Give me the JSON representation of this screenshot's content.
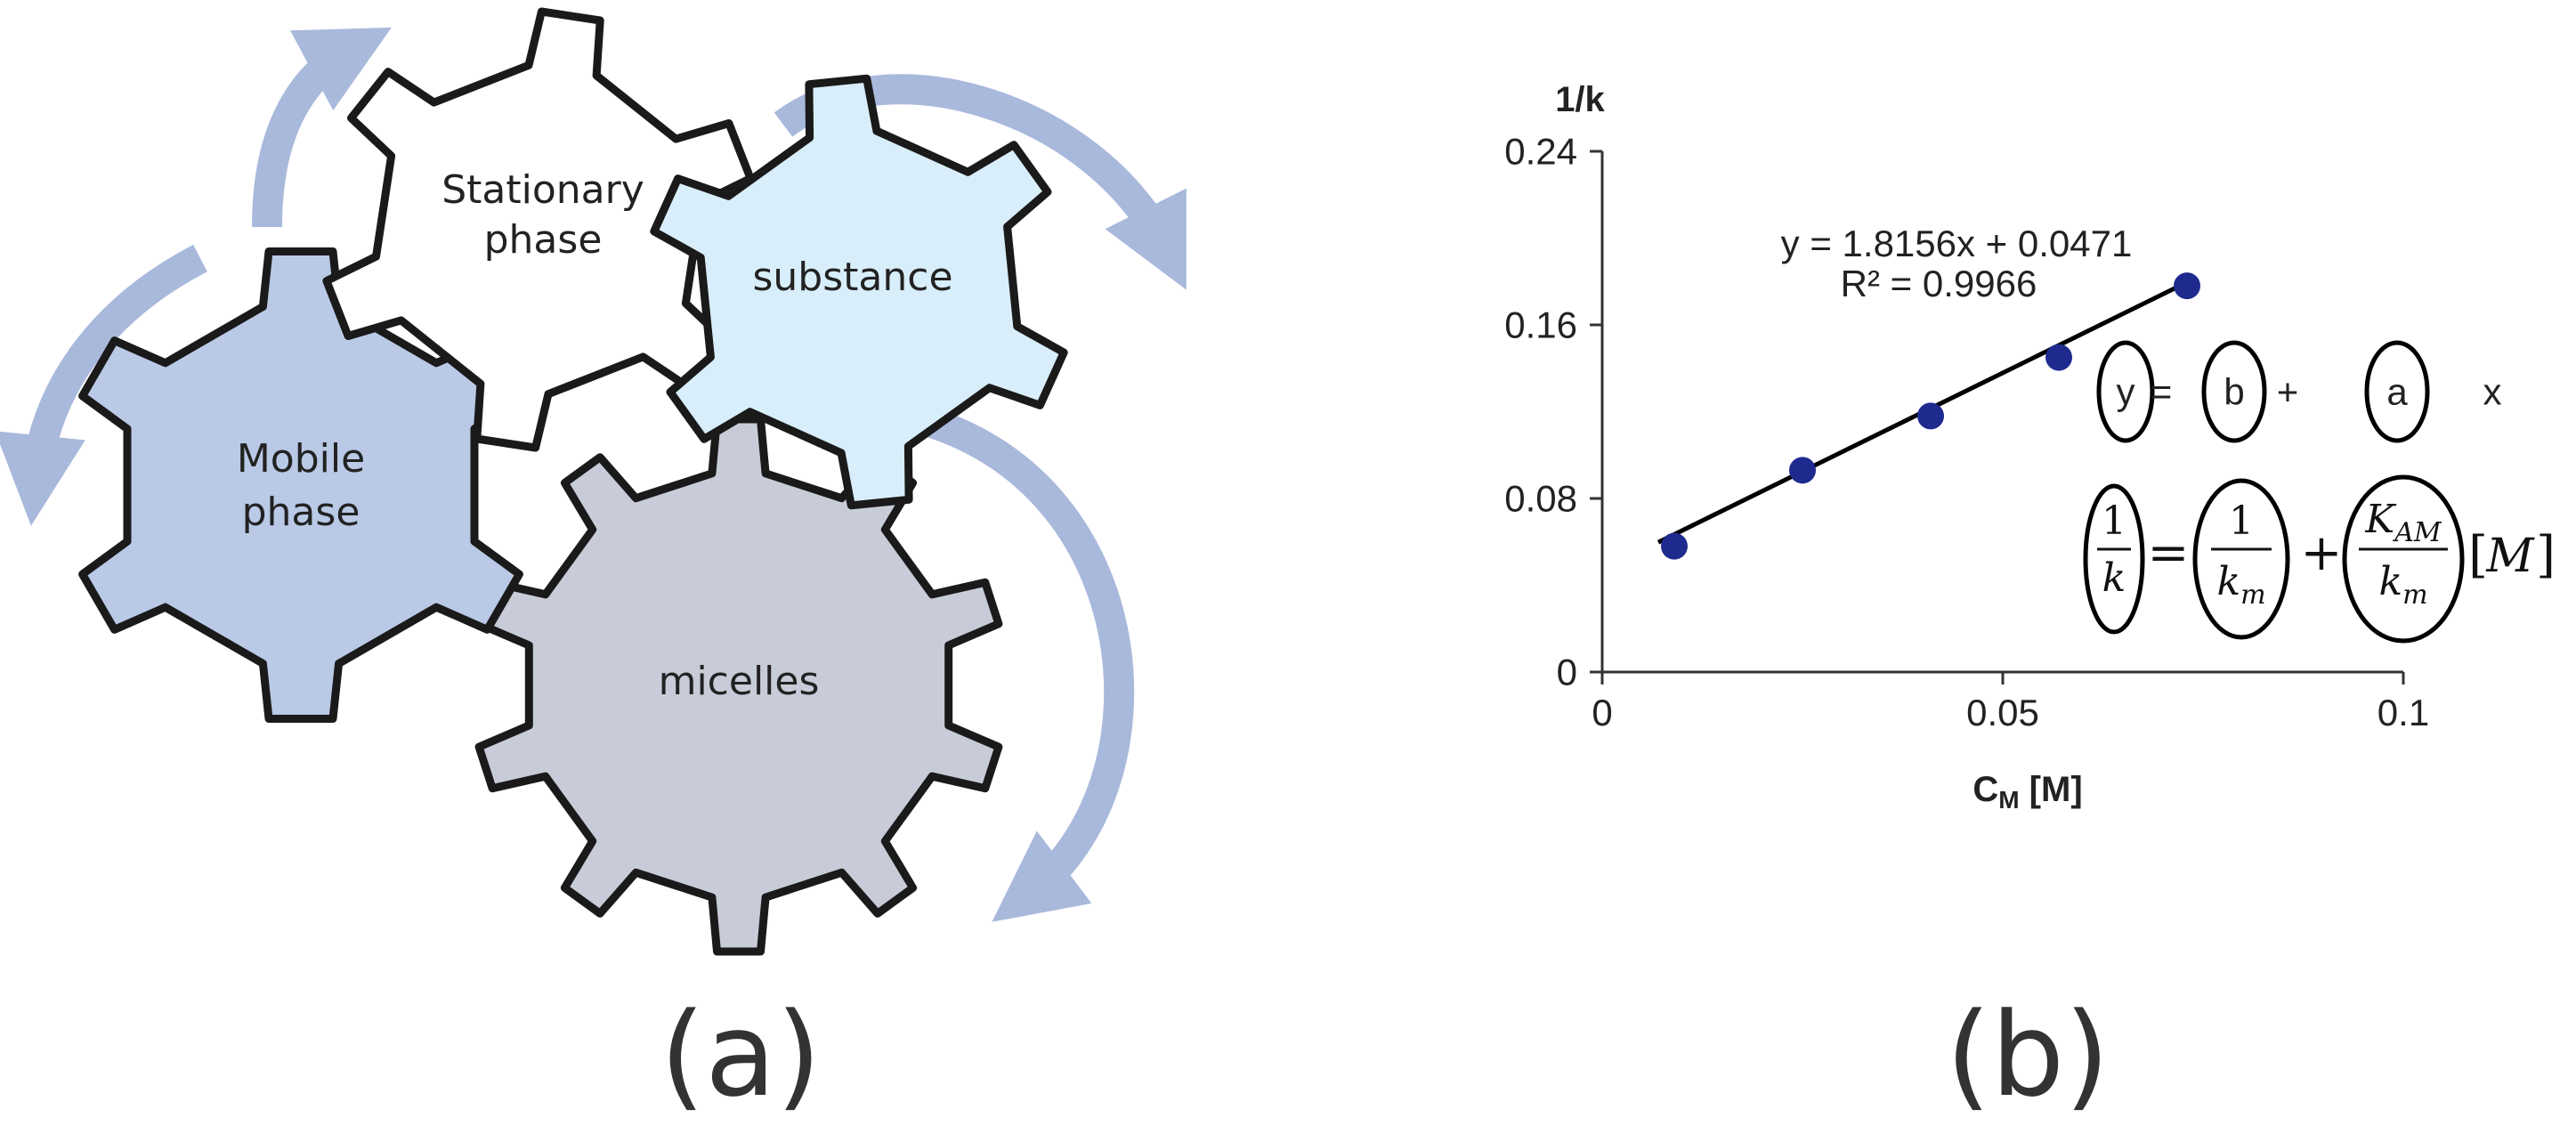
{
  "panel_a": {
    "label": "(a)",
    "gears": {
      "stationary": {
        "line1": "Stationary",
        "line2": "phase",
        "fill": "#ffffff"
      },
      "substance": {
        "text": "substance",
        "fill": "#d8eefa"
      },
      "mobile": {
        "line1": "Mobile",
        "line2": "phase",
        "fill": "#b9c9e6"
      },
      "micelles": {
        "text": "micelles",
        "fill": "#c8ccd8"
      }
    },
    "arrow_color": "#a9b9dc",
    "gear_stroke": "#1a1a1a"
  },
  "panel_b": {
    "label": "(b)",
    "regression": {
      "equation": "y = 1.8156x + 0.0471",
      "r2": "R² = 0.9966"
    },
    "linear_form": {
      "y": "y",
      "eq": "=",
      "b": "b",
      "plus": "+",
      "a": "a",
      "x": "x"
    },
    "equation_symbols": {
      "one_a": "1",
      "k": "k",
      "eq": "=",
      "one_b": "1",
      "km_k": "k",
      "km_sub": "m",
      "plus": "+",
      "kam_k": "K",
      "kam_sub": "AM",
      "km2_k": "k",
      "km2_sub": "m",
      "bracket_open": "[",
      "M": "M",
      "bracket_close": "]"
    }
  },
  "chart_data": {
    "type": "scatter",
    "ylabel": "1/k",
    "xlabel_main": "C",
    "xlabel_sub": "M",
    "xlabel_unit": " [M]",
    "xlim": [
      0,
      0.1
    ],
    "ylim": [
      0,
      0.24
    ],
    "x_ticks": [
      0,
      0.05,
      0.1
    ],
    "x_tick_labels": [
      "0",
      "0.05",
      "0.1"
    ],
    "y_ticks": [
      0,
      0.08,
      0.16,
      0.24
    ],
    "y_tick_labels": [
      "0",
      "0.08",
      "0.16",
      "0.24"
    ],
    "series": [
      {
        "x": [
          0.009,
          0.025,
          0.041,
          0.057,
          0.073
        ],
        "y": [
          0.058,
          0.093,
          0.118,
          0.145,
          0.178
        ],
        "color": "#1f2a8f"
      }
    ],
    "trendline": {
      "slope": 1.8156,
      "intercept": 0.0471,
      "x_range": [
        0.007,
        0.073
      ],
      "color": "#000000"
    },
    "grid": false,
    "legend": "none"
  }
}
